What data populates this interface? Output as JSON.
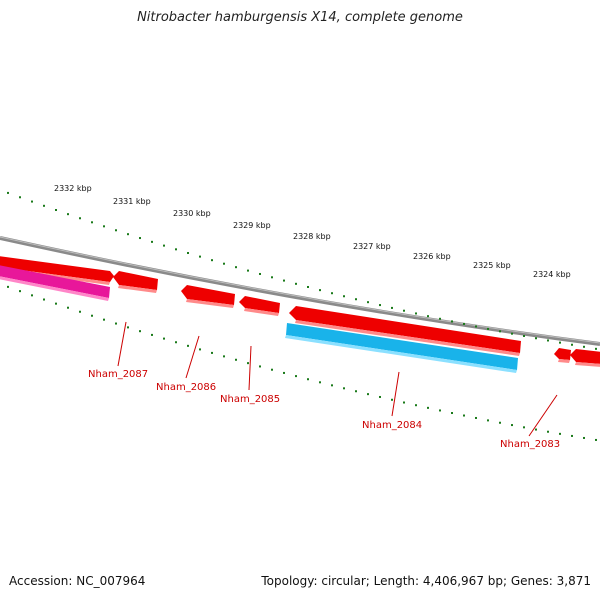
{
  "title": "Nitrobacter hamburgensis X14, complete genome",
  "footer": {
    "accession": "Accession: NC_007964",
    "summary": "Topology: circular; Length: 4,406,967 bp; Genes: 3,871"
  },
  "colors": {
    "backbone": "#8a8a8a",
    "tick": "#1a7a1a",
    "forward_gene": "#ee0000",
    "reverse_gene_pink": "#e8179a",
    "reverse_gene_blue": "#19b3ea",
    "label": "#cc0000"
  },
  "kbp_ticks": [
    "2332 kbp",
    "2331 kbp",
    "2330 kbp",
    "2329 kbp",
    "2328 kbp",
    "2327 kbp",
    "2326 kbp",
    "2325 kbp",
    "2324 kbp"
  ],
  "gene_labels": [
    "Nham_2087",
    "Nham_2086",
    "Nham_2085",
    "Nham_2084",
    "Nham_2083"
  ]
}
